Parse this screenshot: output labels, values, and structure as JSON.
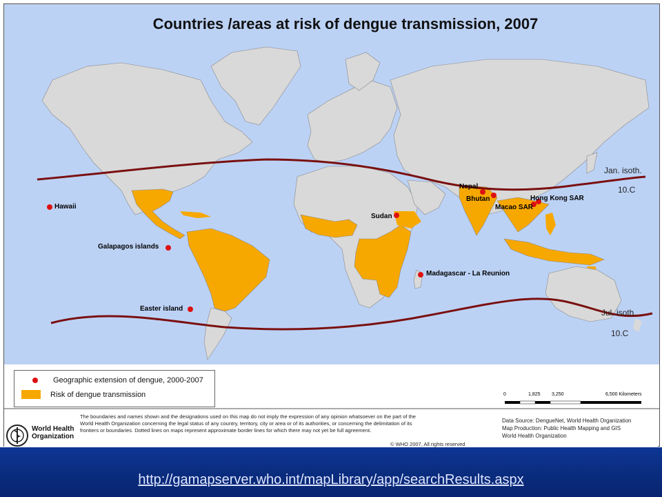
{
  "map": {
    "title": "Countries /areas at risk of dengue transmission, 2007",
    "ocean_color": "#bcd2f5",
    "land_color": "#d9d9d9",
    "risk_color": "#f7a800",
    "isotherm_color": "#7a1010",
    "point_color": "#dd1111",
    "labels": {
      "nepal": "Nepal",
      "bhutan": "Bhutan",
      "hong_kong": "Hong Kong SAR",
      "macao": "Macao SAR",
      "sudan": "Sudan",
      "madagascar": "Madagascar - La Reunion",
      "hawaii": "Hawaii",
      "galapagos": "Galapagos islands",
      "easter": "Easter island"
    },
    "isotherms": {
      "jan_label": "Jan. isoth.",
      "jan_temp": "10.C",
      "jul_label": "Jul. isoth.",
      "jul_temp": "10.C"
    }
  },
  "legend": {
    "dot_label": "Geographic extension of dengue, 2000-2007",
    "area_label": "Risk of dengue transmission"
  },
  "scale": {
    "ticks": [
      "0",
      "1,825",
      "3,250",
      "6,500 Kilometers"
    ]
  },
  "footer": {
    "org_name_line1": "World Health",
    "org_name_line2": "Organization",
    "disclaimer": "The boundaries and names shown and the designations used on this map do not imply the expression of any opinion whatsoever on the part of the World Health Organization concerning the legal status of any country, territory, city or area or of its authorities, or concerning the delimitation of its frontiers or boundaries.  Dotted lines on maps represent approximate border lines for which there may not yet be full agreement.",
    "copyright": "© WHO 2007, All rights reserved",
    "source_line1": "Data Source: DengueNet, World Health Organization",
    "source_line2": "Map Production: Public Health Mapping and GIS",
    "source_line3": "World Health Organization"
  },
  "url": "http://gamapserver.who.int/mapLibrary/app/searchResults.aspx"
}
